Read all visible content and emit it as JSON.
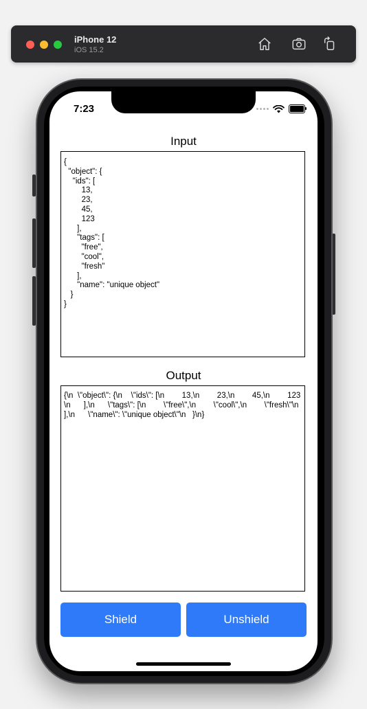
{
  "simulator": {
    "device_name": "iPhone 12",
    "os_version": "iOS 15.2",
    "toolbar_icons": [
      "home-icon",
      "screenshot-icon",
      "rotate-icon"
    ]
  },
  "status_bar": {
    "time": "7:23",
    "icons": [
      "signal-icon",
      "wifi-icon",
      "battery-icon"
    ]
  },
  "input_section": {
    "label": "Input",
    "text": "{\n  \"object\": {\n    \"ids\": [\n        13,\n        23,\n        45,\n        123\n      ],\n      \"tags\": [\n        \"free\",\n        \"cool\",\n        \"fresh\"\n      ],\n      \"name\": \"unique object\"\n   }\n}"
  },
  "output_section": {
    "label": "Output",
    "text": "{\\n  \\\"object\\\": {\\n    \\\"ids\\\": [\\n        13,\\n        23,\\n        45,\\n        123\\n      ],\\n      \\\"tags\\\": [\\n        \\\"free\\\",\\n        \\\"cool\\\",\\n        \\\"fresh\\\"\\n      ],\\n      \\\"name\\\": \\\"unique object\\\"\\n   }\\n}"
  },
  "buttons": {
    "shield_label": "Shield",
    "unshield_label": "Unshield"
  },
  "colors": {
    "button_blue": "#2f7af8",
    "simulator_bar": "#2b2b2d"
  }
}
